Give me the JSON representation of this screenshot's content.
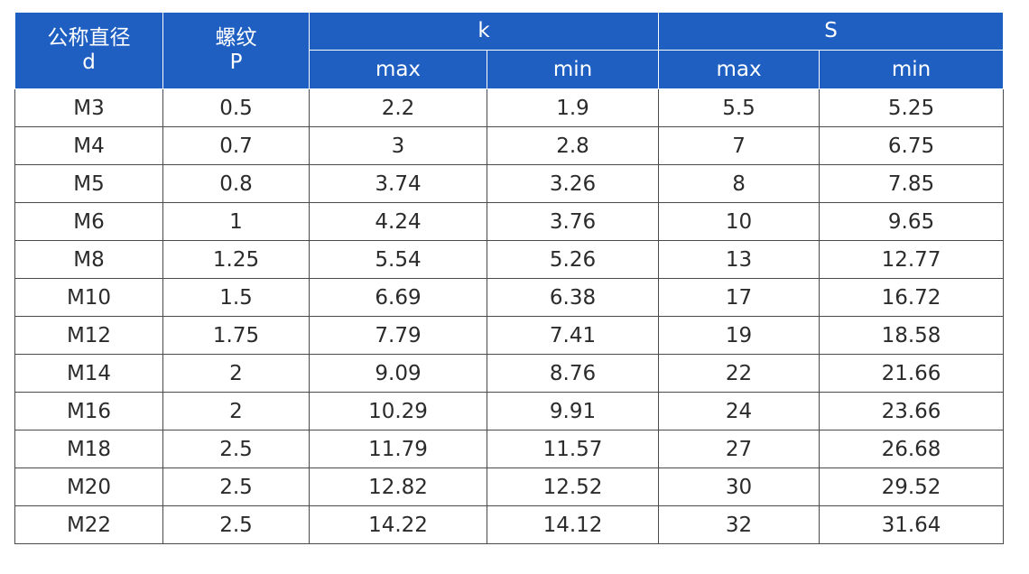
{
  "header": {
    "col_d": {
      "line1": "公称直径",
      "line2": "d"
    },
    "col_p": {
      "line1": "螺纹",
      "line2": "P"
    },
    "group_k": "k",
    "group_s": "S",
    "k_max": "max",
    "k_min": "min",
    "s_max": "max",
    "s_min": "min"
  },
  "rows": [
    [
      "M3",
      "0.5",
      "2.2",
      "1.9",
      "5.5",
      "5.25"
    ],
    [
      "M4",
      "0.7",
      "3",
      "2.8",
      "7",
      "6.75"
    ],
    [
      "M5",
      "0.8",
      "3.74",
      "3.26",
      "8",
      "7.85"
    ],
    [
      "M6",
      "1",
      "4.24",
      "3.76",
      "10",
      "9.65"
    ],
    [
      "M8",
      "1.25",
      "5.54",
      "5.26",
      "13",
      "12.77"
    ],
    [
      "M10",
      "1.5",
      "6.69",
      "6.38",
      "17",
      "16.72"
    ],
    [
      "M12",
      "1.75",
      "7.79",
      "7.41",
      "19",
      "18.58"
    ],
    [
      "M14",
      "2",
      "9.09",
      "8.76",
      "22",
      "21.66"
    ],
    [
      "M16",
      "2",
      "10.29",
      "9.91",
      "24",
      "23.66"
    ],
    [
      "M18",
      "2.5",
      "11.79",
      "11.57",
      "27",
      "26.68"
    ],
    [
      "M20",
      "2.5",
      "12.82",
      "12.52",
      "30",
      "29.52"
    ],
    [
      "M22",
      "2.5",
      "14.22",
      "14.12",
      "32",
      "31.64"
    ]
  ],
  "colors": {
    "header_bg": "#1f5fc2",
    "header_text": "#ffffff",
    "grid_line": "#4a4a4a",
    "cell_text": "#2b2b2b"
  }
}
